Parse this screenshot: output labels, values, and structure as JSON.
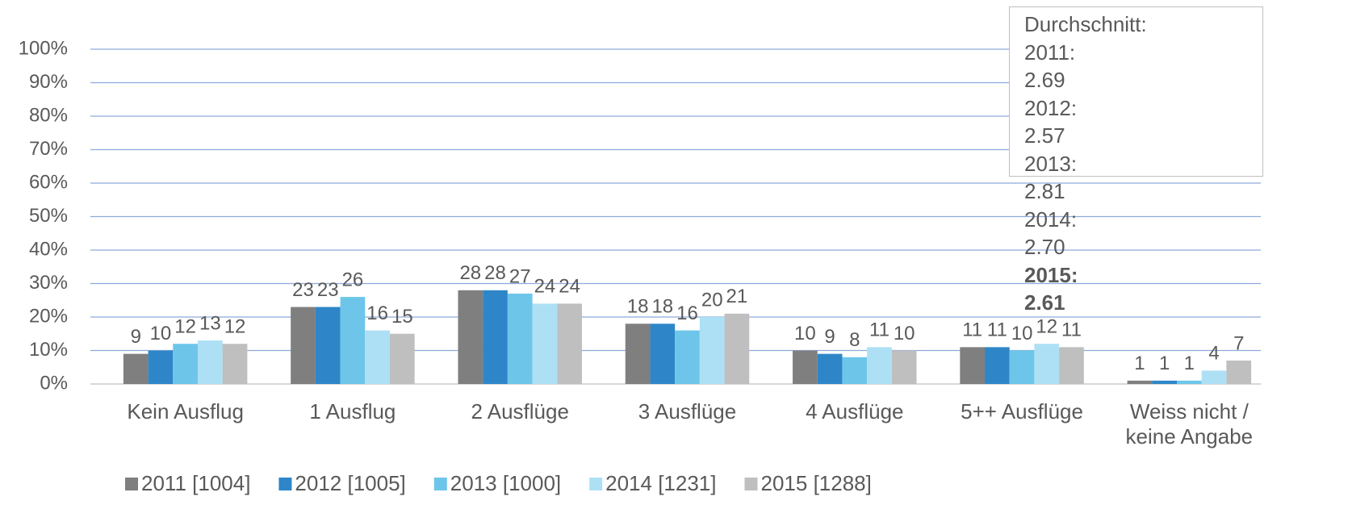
{
  "chart_data": {
    "type": "bar",
    "categories": [
      "Kein Ausflug",
      "1 Ausflug",
      "2 Ausflüge",
      "3 Ausflüge",
      "4 Ausflüge",
      "5++ Ausflüge",
      "Weiss nicht / keine Angabe"
    ],
    "series": [
      {
        "name": "2011 [1004]",
        "color": "#7f7f7f",
        "values": [
          9,
          23,
          28,
          18,
          10,
          11,
          1
        ]
      },
      {
        "name": "2012 [1005]",
        "color": "#2e86c8",
        "values": [
          10,
          23,
          28,
          18,
          9,
          11,
          1
        ]
      },
      {
        "name": "2013 [1000]",
        "color": "#6dc6ea",
        "values": [
          12,
          26,
          27,
          16,
          8,
          10,
          1
        ]
      },
      {
        "name": "2014 [1231]",
        "color": "#aee0f5",
        "values": [
          13,
          16,
          24,
          20,
          11,
          12,
          4
        ]
      },
      {
        "name": "2015 [1288]",
        "color": "#bfbfbf",
        "values": [
          12,
          15,
          24,
          21,
          10,
          11,
          7
        ]
      }
    ],
    "ylim": [
      0,
      100
    ],
    "yticks": [
      {
        "value": 0,
        "label": "0%"
      },
      {
        "value": 10,
        "label": "10%"
      },
      {
        "value": 20,
        "label": "20%"
      },
      {
        "value": 30,
        "label": "30%"
      },
      {
        "value": 40,
        "label": "40%"
      },
      {
        "value": 50,
        "label": "50%"
      },
      {
        "value": 60,
        "label": "60%"
      },
      {
        "value": 70,
        "label": "70%"
      },
      {
        "value": 80,
        "label": "80%"
      },
      {
        "value": 90,
        "label": "90%"
      },
      {
        "value": 100,
        "label": "100%"
      }
    ],
    "grid": true,
    "legend": "bottom",
    "average_box": {
      "title": "Durchschnitt:",
      "rows": [
        [
          "2011:",
          "2.69"
        ],
        [
          "2012:",
          "2.57"
        ],
        [
          "2013:",
          "2.81"
        ],
        [
          "2014:",
          "2.70"
        ],
        [
          "2015:",
          "2.61"
        ]
      ]
    }
  }
}
